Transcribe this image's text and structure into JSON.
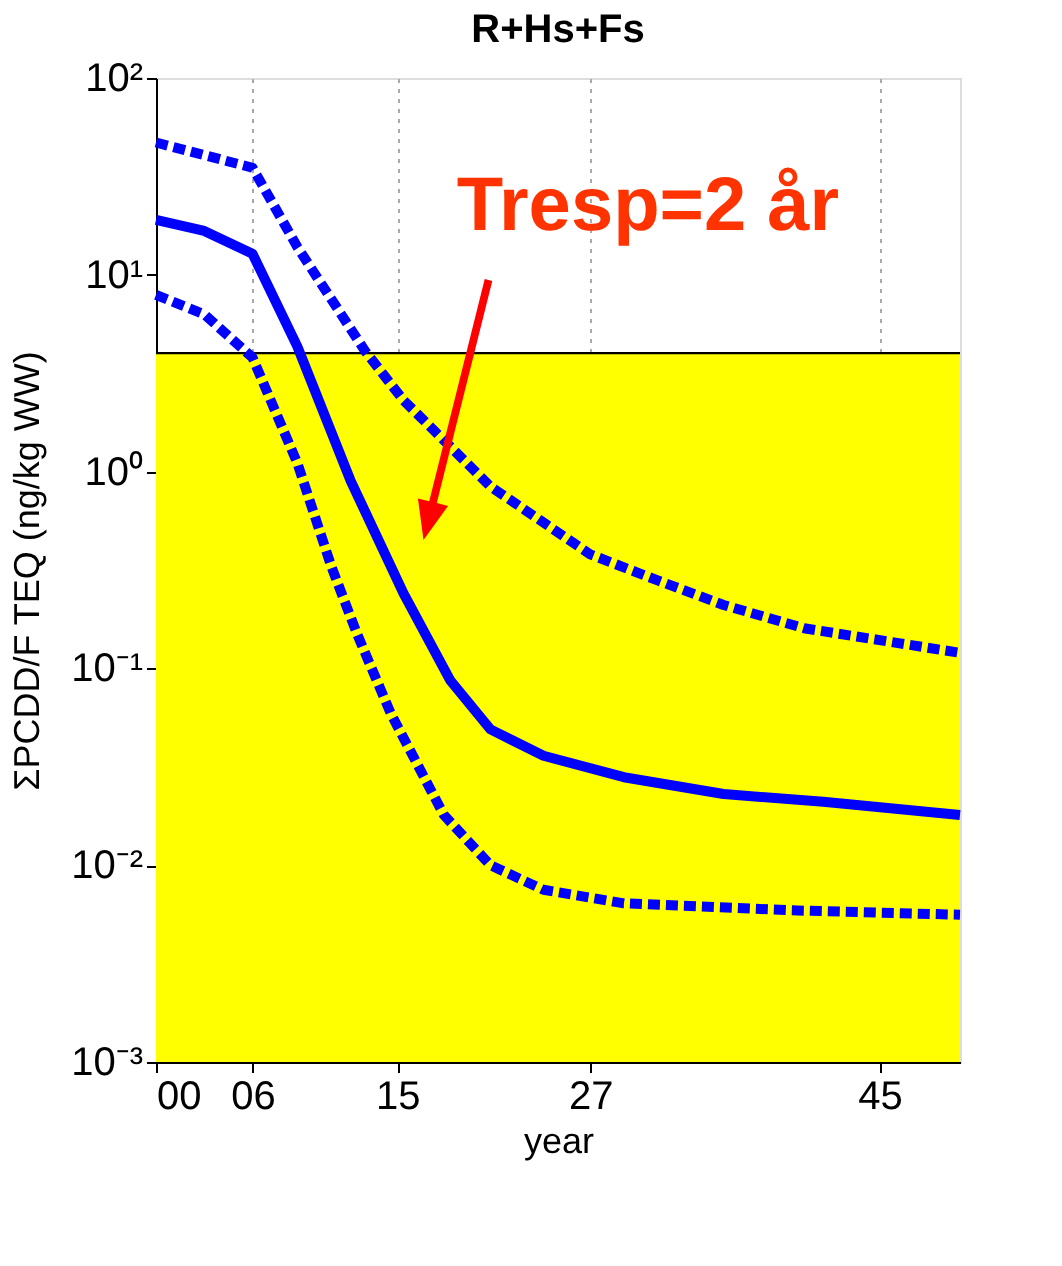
{
  "chart_data": {
    "type": "line",
    "title": "R+Hs+Fs",
    "xlabel": "year",
    "ylabel": "ΣPCDD/F TEQ (ng/kg WW)",
    "log": "y",
    "grid": "x",
    "xlim": [
      0,
      50
    ],
    "xticks": [
      {
        "value": 0,
        "label": "00"
      },
      {
        "value": 6,
        "label": "06"
      },
      15,
      27,
      45
    ],
    "ylim": [
      0.001,
      100
    ],
    "yticks": [
      {
        "value": 0.001,
        "label": "10⁻³"
      },
      {
        "value": 0.01,
        "label": "10⁻²"
      },
      {
        "value": 0.1,
        "label": "10⁻¹"
      },
      {
        "value": 1,
        "label": "10⁰"
      },
      {
        "value": 10,
        "label": "10¹"
      },
      {
        "value": 100,
        "label": "10²"
      }
    ],
    "series": [
      {
        "color": "#0000ff",
        "line_style": "dashed",
        "x": [
          0,
          6,
          8.8,
          13,
          15.4,
          20.8,
          27,
          31.2,
          35.3,
          40.3,
          50
        ],
        "values": [
          47,
          35,
          13.8,
          4.1,
          2.3,
          0.84,
          0.38,
          0.28,
          0.21,
          0.16,
          0.12
        ]
      },
      {
        "color": "#0000ff",
        "line_style": "solid",
        "x": [
          0,
          3,
          6,
          8.8,
          12.1,
          15.4,
          18.3,
          20.8,
          24.1,
          29.1,
          35.3,
          41.5,
          50
        ],
        "values": [
          19,
          16.7,
          12.8,
          4.3,
          0.9,
          0.24,
          0.087,
          0.049,
          0.036,
          0.028,
          0.023,
          0.021,
          0.018
        ]
      },
      {
        "color": "#0000ff",
        "line_style": "dashed",
        "x": [
          0,
          3,
          6,
          8.8,
          10.9,
          12.5,
          14.6,
          17.9,
          20.8,
          24.1,
          29.1,
          39.5,
          50
        ],
        "values": [
          7.9,
          6.3,
          3.8,
          1.1,
          0.33,
          0.15,
          0.059,
          0.018,
          0.01,
          0.0075,
          0.0064,
          0.0059,
          0.0056
        ]
      }
    ],
    "bands": [
      {
        "axis": "y",
        "from": 0.001,
        "to": 4,
        "color": "#ffff00"
      }
    ],
    "ref_lines": [
      {
        "axis": "y",
        "value": 4,
        "color": "#000000"
      }
    ],
    "annotations": [
      "Tresp=2 år"
    ]
  }
}
